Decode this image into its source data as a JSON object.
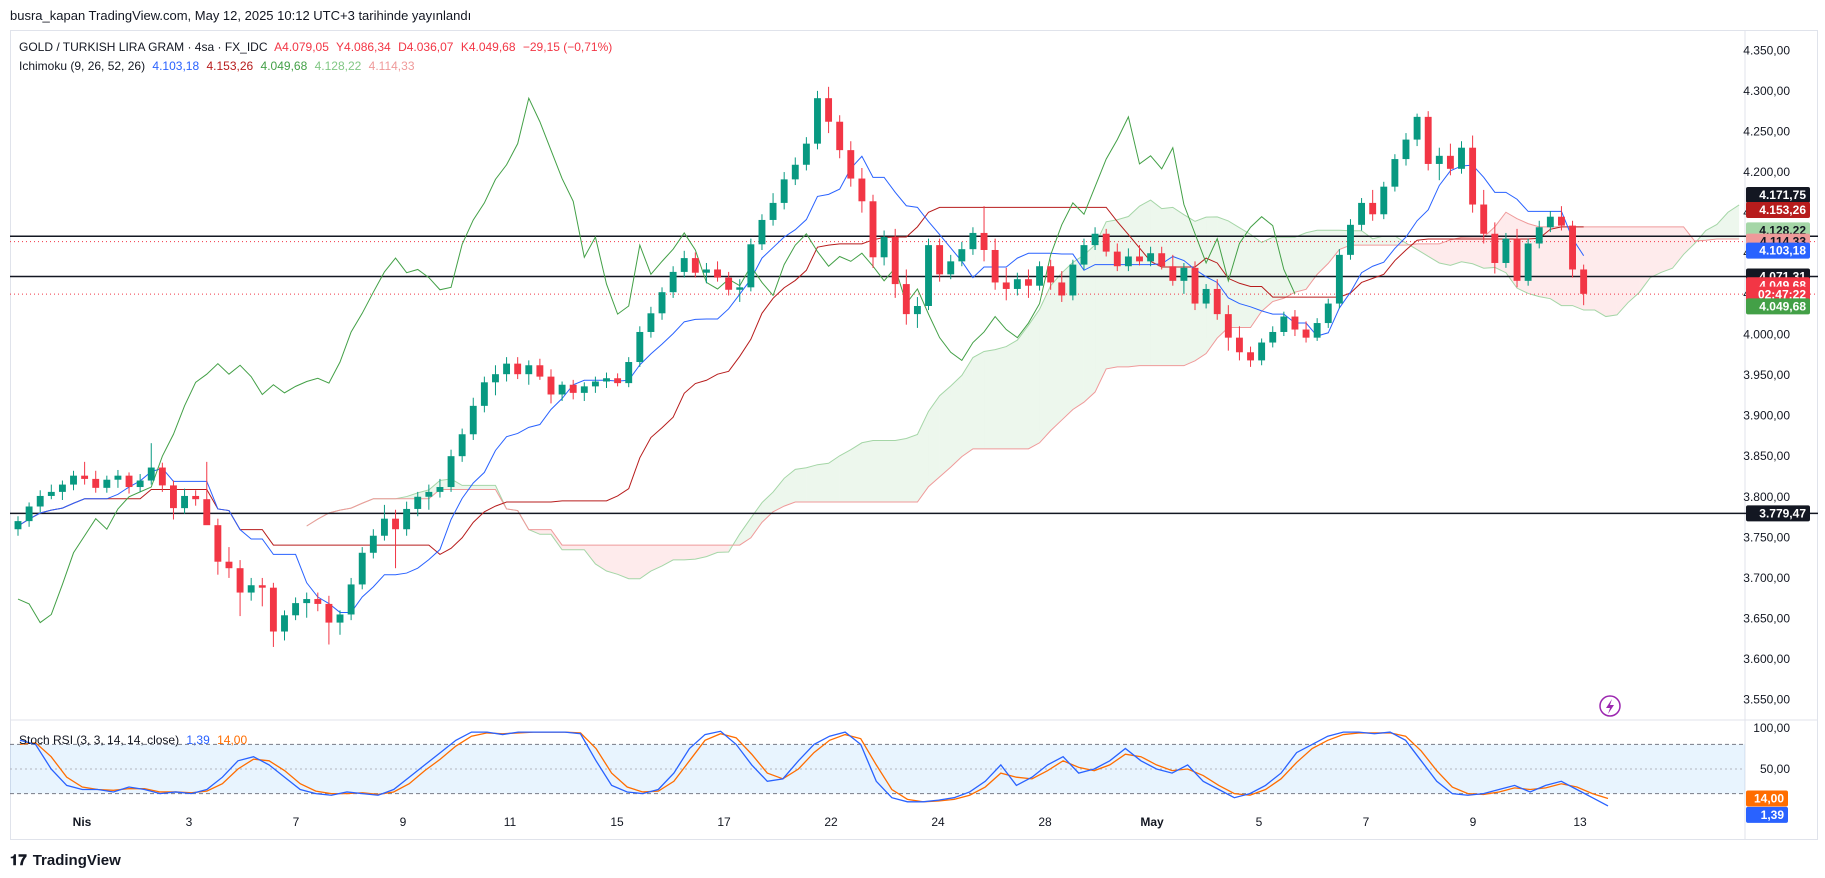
{
  "header": {
    "text": "busra_kapan TradingView.com, May 12, 2025 10:12 UTC+3 tarihinde yayınlandı"
  },
  "legend_main": {
    "symbol": "GOLD / TURKISH LIRA GRAM · 4sa · FX_IDC",
    "open": "A4.079,05",
    "high": "Y4.086,34",
    "low": "D4.036,07",
    "close": "K4.049,68",
    "change": "−29,15 (−0,71%)"
  },
  "legend_ichimoku": {
    "name": "Ichimoku (9, 26, 52, 26)",
    "conversion": "4.103,18",
    "base": "4.153,26",
    "lagging": "4.049,68",
    "lead1": "4.128,22",
    "lead2": "4.114,33"
  },
  "legend_stoch": {
    "name": "Stoch RSI (3, 3, 14, 14, close)",
    "k": "1,39",
    "d": "14,00"
  },
  "footer": {
    "brand": "TradingView"
  },
  "colors": {
    "up": "#089981",
    "down": "#f23645",
    "conversion": "#2962ff",
    "base": "#b71c1c",
    "lagging": "#43a047",
    "cloud_bull": "#a5d6a7",
    "cloud_bear": "#ef9a9a",
    "stoch_k": "#2962ff",
    "stoch_d": "#ff6d00"
  },
  "chart_data": {
    "type": "candlestick",
    "title": "GOLD / TURKISH LIRA GRAM · 4sa · FX_IDC",
    "price_axis": {
      "ticks": [
        4350,
        4300,
        4250,
        4200,
        4150,
        4100,
        4050,
        4000,
        3950,
        3900,
        3850,
        3800,
        3750,
        3700,
        3650,
        3600,
        3550
      ],
      "tick_labels": [
        "4.350,00",
        "4.300,00",
        "4.250,00",
        "4.200,00",
        "4.150,00",
        "4.100,00",
        "4.050,00",
        "4.000,00",
        "3.950,00",
        "3.900,00",
        "3.850,00",
        "3.800,00",
        "3.750,00",
        "3.700,00",
        "3.650,00",
        "3.600,00",
        "3.550,00"
      ]
    },
    "time_axis": {
      "labels": [
        "Nis",
        "3",
        "7",
        "9",
        "11",
        "15",
        "17",
        "22",
        "24",
        "28",
        "May",
        "5",
        "7",
        "9",
        "13"
      ]
    },
    "horizontal_lines": [
      4121,
      4071.31,
      3779.47
    ],
    "price_tags": [
      {
        "label": "4.171,75",
        "value": 4171.75,
        "bg": "#131722",
        "fg": "#ffffff"
      },
      {
        "label": "4.153,26",
        "value": 4153.26,
        "bg": "#b71c1c",
        "fg": "#ffffff"
      },
      {
        "label": "4.128,22",
        "value": 4128.22,
        "bg": "#a5d6a7",
        "fg": "#131722"
      },
      {
        "label": "4.114,33",
        "value": 4114.33,
        "bg": "#ef9a9a",
        "fg": "#131722"
      },
      {
        "label": "4.103,18",
        "value": 4103.18,
        "bg": "#2962ff",
        "fg": "#ffffff"
      },
      {
        "label": "4.071,31",
        "value": 4071.31,
        "bg": "#131722",
        "fg": "#ffffff"
      },
      {
        "label": "4.049,68",
        "value": 4060.5,
        "bg": "#f23645",
        "fg": "#ffffff"
      },
      {
        "label": "02:47:22",
        "value": 4049.0,
        "bg": "#f23645",
        "fg": "#ffffff"
      },
      {
        "label": "4.049,68",
        "value": 4034.5,
        "bg": "#43a047",
        "fg": "#ffffff"
      },
      {
        "label": "3.779,47",
        "value": 3779.47,
        "bg": "#131722",
        "fg": "#ffffff"
      }
    ],
    "candles_ohlc": [
      [
        3760,
        3776,
        3752,
        3770
      ],
      [
        3770,
        3793,
        3763,
        3788
      ],
      [
        3788,
        3808,
        3781,
        3801
      ],
      [
        3801,
        3815,
        3797,
        3806
      ],
      [
        3806,
        3820,
        3796,
        3815
      ],
      [
        3815,
        3832,
        3808,
        3826
      ],
      [
        3826,
        3843,
        3815,
        3822
      ],
      [
        3822,
        3832,
        3805,
        3811
      ],
      [
        3811,
        3826,
        3805,
        3821
      ],
      [
        3821,
        3833,
        3811,
        3826
      ],
      [
        3826,
        3830,
        3804,
        3812
      ],
      [
        3812,
        3828,
        3806,
        3820
      ],
      [
        3820,
        3866,
        3815,
        3836
      ],
      [
        3836,
        3842,
        3806,
        3814
      ],
      [
        3814,
        3820,
        3772,
        3786
      ],
      [
        3786,
        3810,
        3779,
        3801
      ],
      [
        3801,
        3808,
        3789,
        3797
      ],
      [
        3797,
        3843,
        3776,
        3765
      ],
      [
        3765,
        3773,
        3704,
        3720
      ],
      [
        3720,
        3738,
        3700,
        3712
      ],
      [
        3712,
        3722,
        3653,
        3682
      ],
      [
        3682,
        3700,
        3672,
        3691
      ],
      [
        3691,
        3700,
        3665,
        3688
      ],
      [
        3688,
        3694,
        3615,
        3634
      ],
      [
        3634,
        3660,
        3623,
        3654
      ],
      [
        3654,
        3676,
        3648,
        3669
      ],
      [
        3669,
        3682,
        3651,
        3674
      ],
      [
        3674,
        3682,
        3659,
        3668
      ],
      [
        3668,
        3678,
        3618,
        3645
      ],
      [
        3645,
        3660,
        3630,
        3655
      ],
      [
        3655,
        3700,
        3648,
        3692
      ],
      [
        3692,
        3738,
        3686,
        3731
      ],
      [
        3731,
        3760,
        3724,
        3752
      ],
      [
        3752,
        3790,
        3746,
        3773
      ],
      [
        3773,
        3784,
        3712,
        3760
      ],
      [
        3760,
        3794,
        3752,
        3785
      ],
      [
        3785,
        3806,
        3776,
        3800
      ],
      [
        3800,
        3815,
        3784,
        3806
      ],
      [
        3806,
        3822,
        3799,
        3812
      ],
      [
        3812,
        3858,
        3806,
        3850
      ],
      [
        3850,
        3884,
        3843,
        3877
      ],
      [
        3877,
        3922,
        3870,
        3912
      ],
      [
        3912,
        3948,
        3904,
        3941
      ],
      [
        3941,
        3962,
        3925,
        3951
      ],
      [
        3951,
        3972,
        3942,
        3964
      ],
      [
        3964,
        3972,
        3945,
        3951
      ],
      [
        3951,
        3968,
        3938,
        3962
      ],
      [
        3962,
        3970,
        3944,
        3948
      ],
      [
        3948,
        3957,
        3915,
        3926
      ],
      [
        3926,
        3942,
        3918,
        3938
      ],
      [
        3938,
        3944,
        3920,
        3928
      ],
      [
        3928,
        3941,
        3918,
        3936
      ],
      [
        3936,
        3948,
        3928,
        3942
      ],
      [
        3942,
        3953,
        3934,
        3946
      ],
      [
        3946,
        3952,
        3936,
        3940
      ],
      [
        3940,
        3972,
        3935,
        3966
      ],
      [
        3966,
        4010,
        3960,
        4003
      ],
      [
        4003,
        4034,
        3996,
        4026
      ],
      [
        4026,
        4058,
        4018,
        4052
      ],
      [
        4052,
        4084,
        4045,
        4077
      ],
      [
        4077,
        4103,
        4070,
        4094
      ],
      [
        4094,
        4101,
        4070,
        4076
      ],
      [
        4076,
        4088,
        4063,
        4080
      ],
      [
        4080,
        4090,
        4065,
        4070
      ],
      [
        4070,
        4077,
        4048,
        4055
      ],
      [
        4055,
        4068,
        4040,
        4058
      ],
      [
        4058,
        4118,
        4053,
        4111
      ],
      [
        4111,
        4148,
        4104,
        4141
      ],
      [
        4141,
        4174,
        4134,
        4162
      ],
      [
        4162,
        4200,
        4154,
        4191
      ],
      [
        4191,
        4218,
        4184,
        4209
      ],
      [
        4209,
        4243,
        4202,
        4235
      ],
      [
        4235,
        4300,
        4228,
        4291
      ],
      [
        4291,
        4305,
        4248,
        4262
      ],
      [
        4262,
        4270,
        4217,
        4227
      ],
      [
        4227,
        4238,
        4182,
        4192
      ],
      [
        4192,
        4205,
        4150,
        4164
      ],
      [
        4164,
        4172,
        4082,
        4095
      ],
      [
        4095,
        4128,
        4085,
        4120
      ],
      [
        4120,
        4130,
        4045,
        4062
      ],
      [
        4062,
        4080,
        4012,
        4025
      ],
      [
        4025,
        4046,
        4008,
        4035
      ],
      [
        4035,
        4118,
        4030,
        4110
      ],
      [
        4110,
        4118,
        4065,
        4074
      ],
      [
        4074,
        4098,
        4068,
        4090
      ],
      [
        4090,
        4114,
        4084,
        4105
      ],
      [
        4105,
        4132,
        4098,
        4125
      ],
      [
        4125,
        4158,
        4090,
        4104
      ],
      [
        4104,
        4118,
        4055,
        4064
      ],
      [
        4064,
        4082,
        4042,
        4056
      ],
      [
        4056,
        4076,
        4048,
        4068
      ],
      [
        4068,
        4080,
        4045,
        4060
      ],
      [
        4060,
        4090,
        4054,
        4084
      ],
      [
        4084,
        4092,
        4055,
        4064
      ],
      [
        4064,
        4078,
        4040,
        4048
      ],
      [
        4048,
        4092,
        4042,
        4086
      ],
      [
        4086,
        4118,
        4080,
        4110
      ],
      [
        4110,
        4132,
        4104,
        4124
      ],
      [
        4124,
        4130,
        4096,
        4102
      ],
      [
        4102,
        4112,
        4078,
        4084
      ],
      [
        4084,
        4106,
        4078,
        4096
      ],
      [
        4096,
        4110,
        4085,
        4090
      ],
      [
        4090,
        4108,
        4084,
        4100
      ],
      [
        4100,
        4108,
        4080,
        4084
      ],
      [
        4084,
        4098,
        4060,
        4066
      ],
      [
        4066,
        4088,
        4050,
        4082
      ],
      [
        4082,
        4090,
        4030,
        4038
      ],
      [
        4038,
        4062,
        4032,
        4056
      ],
      [
        4056,
        4068,
        4018,
        4025
      ],
      [
        4025,
        4036,
        3980,
        3996
      ],
      [
        3996,
        4010,
        3968,
        3978
      ],
      [
        3978,
        3985,
        3960,
        3968
      ],
      [
        3968,
        3995,
        3962,
        3990
      ],
      [
        3990,
        4010,
        3984,
        4003
      ],
      [
        4003,
        4028,
        3998,
        4022
      ],
      [
        4022,
        4030,
        3998,
        4006
      ],
      [
        4006,
        4016,
        3990,
        3996
      ],
      [
        3996,
        4020,
        3992,
        4014
      ],
      [
        4014,
        4044,
        4008,
        4038
      ],
      [
        4038,
        4105,
        4032,
        4098
      ],
      [
        4098,
        4142,
        4092,
        4135
      ],
      [
        4135,
        4168,
        4128,
        4162
      ],
      [
        4162,
        4178,
        4140,
        4148
      ],
      [
        4148,
        4188,
        4142,
        4182
      ],
      [
        4182,
        4222,
        4176,
        4216
      ],
      [
        4216,
        4248,
        4208,
        4240
      ],
      [
        4240,
        4272,
        4232,
        4268
      ],
      [
        4268,
        4275,
        4202,
        4210
      ],
      [
        4210,
        4230,
        4190,
        4220
      ],
      [
        4220,
        4235,
        4196,
        4204
      ],
      [
        4204,
        4238,
        4198,
        4230
      ],
      [
        4230,
        4245,
        4150,
        4160
      ],
      [
        4160,
        4178,
        4112,
        4124
      ],
      [
        4124,
        4138,
        4075,
        4088
      ],
      [
        4088,
        4125,
        4082,
        4118
      ],
      [
        4118,
        4130,
        4058,
        4066
      ],
      [
        4066,
        4118,
        4060,
        4112
      ],
      [
        4112,
        4140,
        4106,
        4132
      ],
      [
        4132,
        4152,
        4126,
        4145
      ],
      [
        4145,
        4158,
        4128,
        4134
      ],
      [
        4134,
        4140,
        4070,
        4080
      ],
      [
        4080,
        4086,
        4036,
        4050
      ]
    ],
    "ichimoku": {
      "conversion_line_value": 4103.18,
      "base_line_value": 4153.26,
      "lagging_span_value": 4049.68,
      "leading_span_a_value": 4128.22,
      "leading_span_b_value": 4114.33
    },
    "stoch_rsi": {
      "axis_ticks": [
        100,
        50,
        0
      ],
      "axis_labels": [
        "100,00",
        "50,00"
      ],
      "levels": [
        80,
        20
      ],
      "k_value": 1.39,
      "d_value": 14.0,
      "k": [
        85,
        80,
        50,
        30,
        25,
        25,
        22,
        28,
        25,
        20,
        22,
        20,
        25,
        40,
        60,
        65,
        55,
        40,
        25,
        20,
        18,
        22,
        20,
        18,
        25,
        40,
        55,
        70,
        85,
        95,
        95,
        92,
        95,
        95,
        95,
        95,
        93,
        60,
        30,
        22,
        20,
        25,
        45,
        75,
        92,
        96,
        80,
        55,
        35,
        38,
        60,
        80,
        90,
        95,
        80,
        35,
        15,
        10,
        10,
        12,
        15,
        22,
        35,
        55,
        30,
        40,
        55,
        65,
        45,
        50,
        60,
        75,
        60,
        50,
        45,
        55,
        35,
        25,
        15,
        20,
        30,
        45,
        70,
        80,
        90,
        95,
        95,
        93,
        95,
        85,
        60,
        35,
        20,
        18,
        20,
        25,
        30,
        22,
        30,
        35,
        25,
        15,
        5
      ],
      "d": [
        80,
        82,
        65,
        40,
        28,
        25,
        24,
        26,
        26,
        22,
        22,
        21,
        23,
        32,
        50,
        62,
        60,
        48,
        32,
        23,
        20,
        20,
        21,
        19,
        22,
        32,
        48,
        62,
        78,
        90,
        94,
        93,
        94,
        95,
        95,
        95,
        94,
        75,
        45,
        28,
        22,
        23,
        35,
        60,
        85,
        93,
        88,
        68,
        45,
        38,
        50,
        70,
        85,
        92,
        87,
        55,
        25,
        13,
        10,
        11,
        13,
        18,
        28,
        45,
        40,
        38,
        48,
        60,
        52,
        48,
        55,
        68,
        65,
        55,
        48,
        50,
        42,
        30,
        20,
        18,
        25,
        38,
        58,
        75,
        85,
        92,
        94,
        94,
        94,
        90,
        72,
        48,
        28,
        20,
        19,
        22,
        27,
        25,
        27,
        32,
        28,
        20,
        14
      ]
    }
  }
}
